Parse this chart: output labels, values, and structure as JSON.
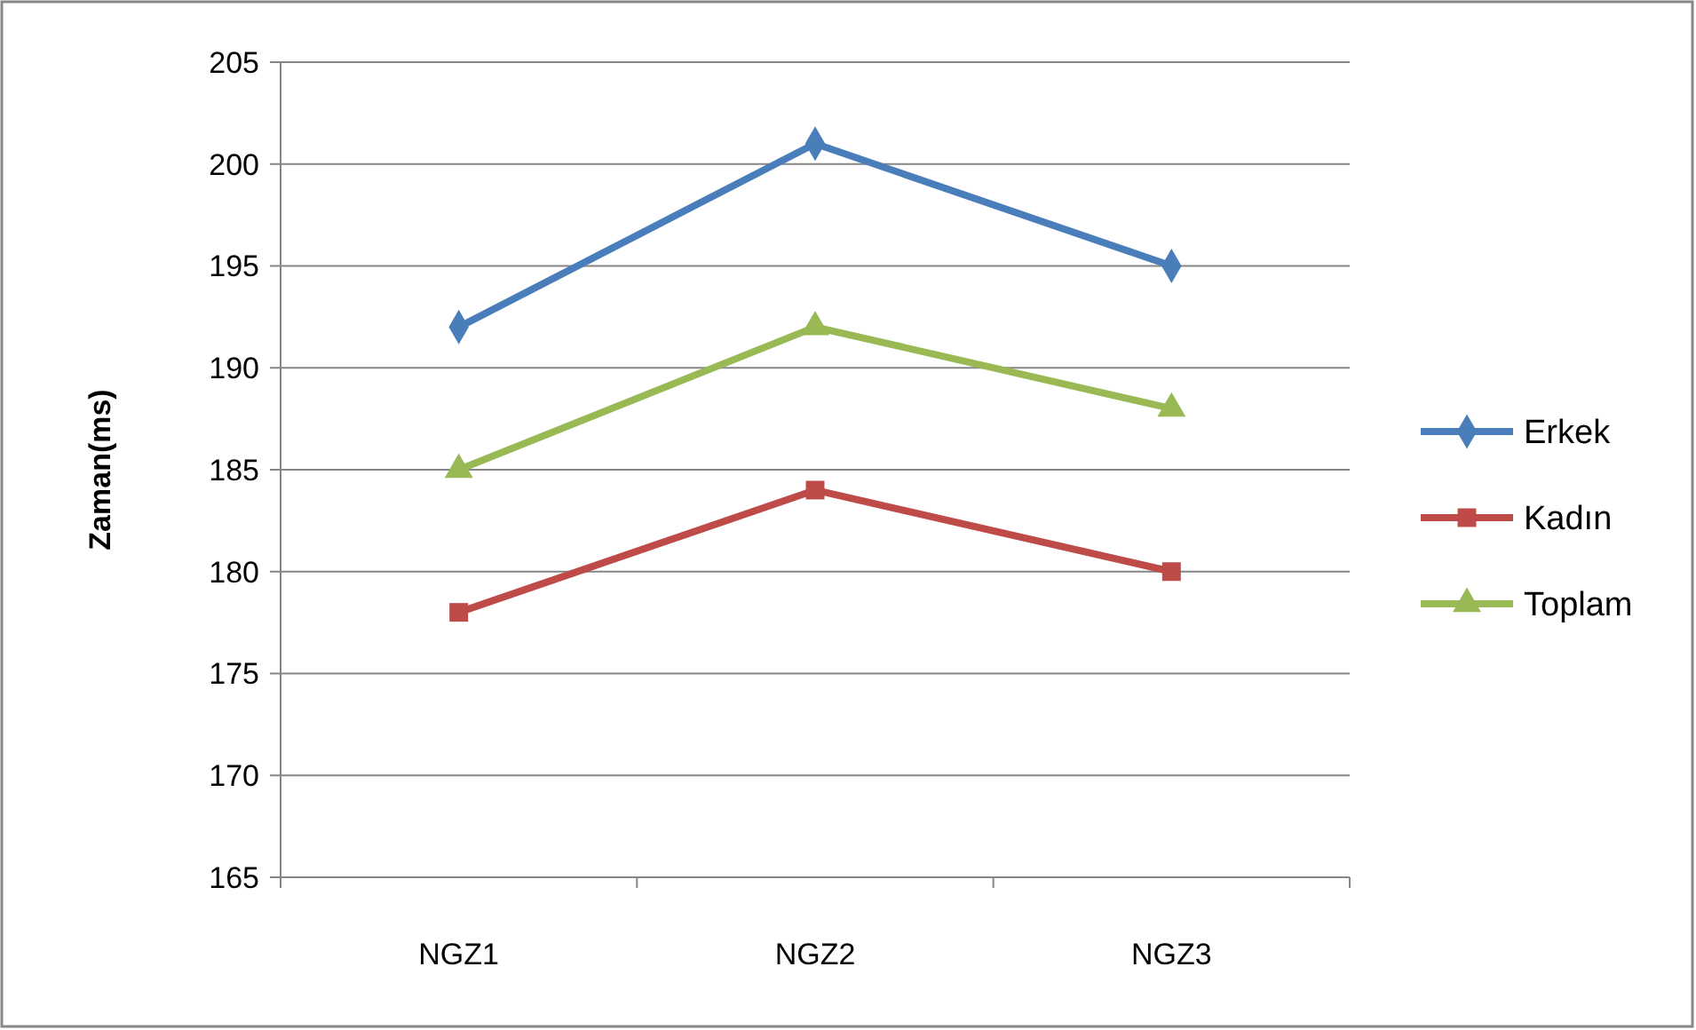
{
  "chart_data": {
    "type": "line",
    "ylabel": "Zaman(ms)",
    "categories": [
      "NGZ1",
      "NGZ2",
      "NGZ3"
    ],
    "series": [
      {
        "name": "Erkek",
        "color": "#4a7ebb",
        "values": [
          192,
          201,
          195
        ],
        "marker": "diamond"
      },
      {
        "name": "Kadın",
        "color": "#be4b48",
        "values": [
          178,
          184,
          180
        ],
        "marker": "square"
      },
      {
        "name": "Toplam",
        "color": "#98b954",
        "values": [
          185,
          192,
          188
        ],
        "marker": "triangle"
      }
    ],
    "ylim": [
      165,
      205
    ],
    "yticks": [
      165,
      170,
      175,
      180,
      185,
      190,
      195,
      200,
      205
    ],
    "grid": "y",
    "legend": "right",
    "line_style": "solid"
  }
}
